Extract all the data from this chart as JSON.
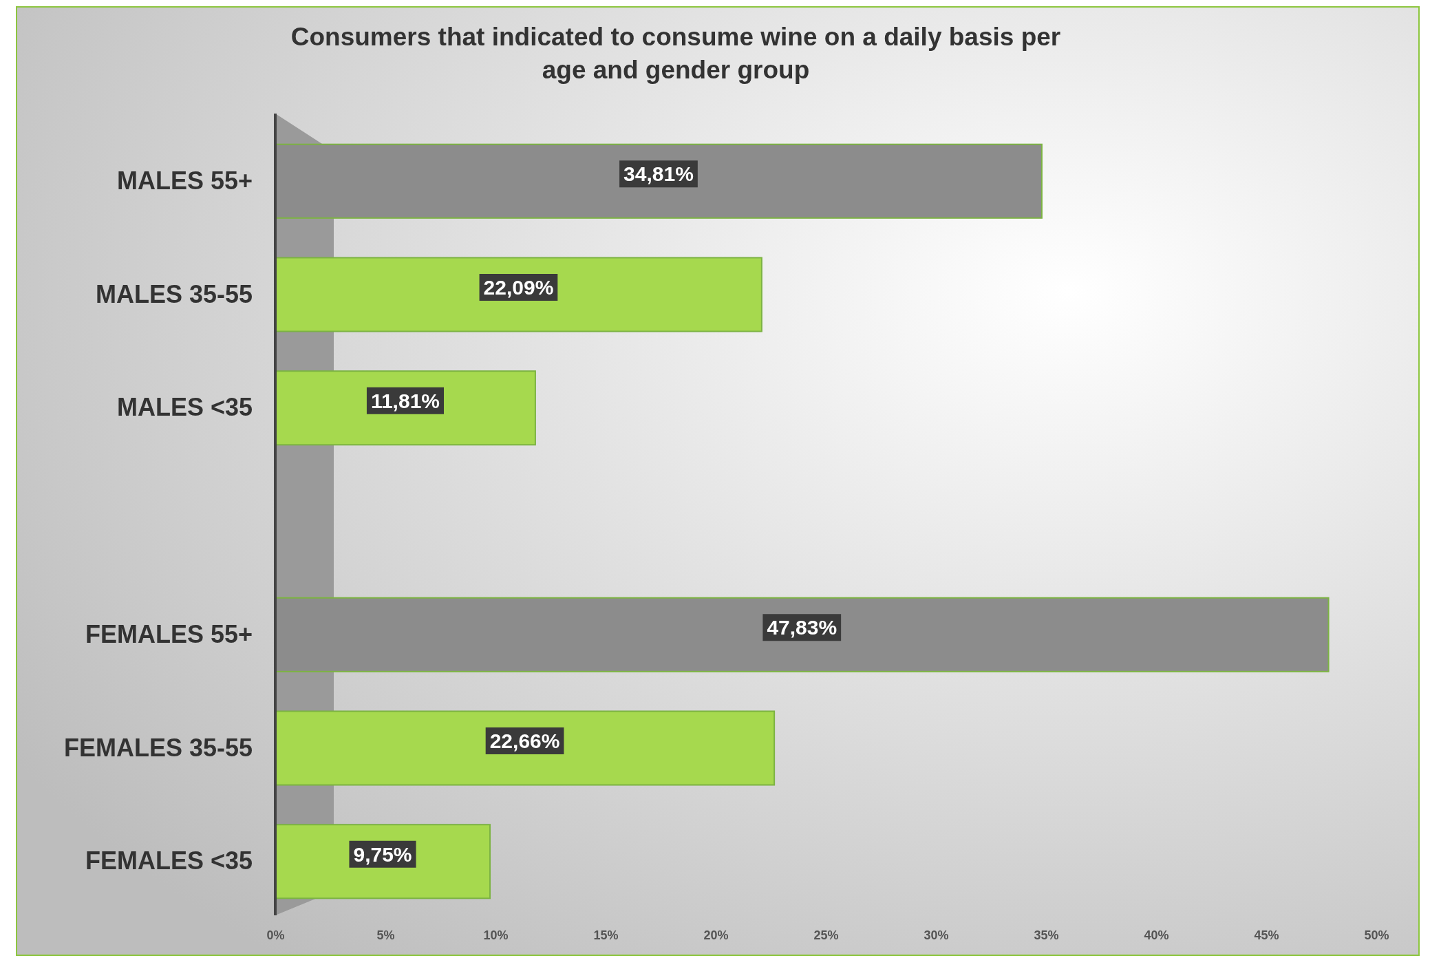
{
  "chart_data": {
    "type": "bar",
    "orientation": "horizontal",
    "title": "Consumers that indicated to consume wine on a daily basis per age and gender group",
    "categories": [
      "MALES 55+",
      "MALES 35-55",
      "MALES <35",
      null,
      "FEMALES 55+",
      "FEMALES 35-55",
      "FEMALES <35"
    ],
    "values": [
      34.81,
      22.09,
      11.81,
      null,
      47.83,
      22.66,
      9.75
    ],
    "colors": [
      "#8c8c8c",
      "#a6d94e",
      "#a6d94e",
      null,
      "#8c8c8c",
      "#a6d94e",
      "#a6d94e"
    ],
    "value_labels": [
      "34,81%",
      "22,09%",
      "11,81%",
      null,
      "47,83%",
      "22,66%",
      "9,75%"
    ],
    "xlim": [
      0,
      50
    ],
    "xticks": [
      {
        "value": 0,
        "label": "0%"
      },
      {
        "value": 5,
        "label": "5%"
      },
      {
        "value": 10,
        "label": "10%"
      },
      {
        "value": 15,
        "label": "15%"
      },
      {
        "value": 20,
        "label": "20%"
      },
      {
        "value": 25,
        "label": "25%"
      },
      {
        "value": 30,
        "label": "30%"
      },
      {
        "value": 35,
        "label": "35%"
      },
      {
        "value": 40,
        "label": "40%"
      },
      {
        "value": 45,
        "label": "45%"
      },
      {
        "value": 50,
        "label": "50%"
      }
    ],
    "grid": false
  }
}
